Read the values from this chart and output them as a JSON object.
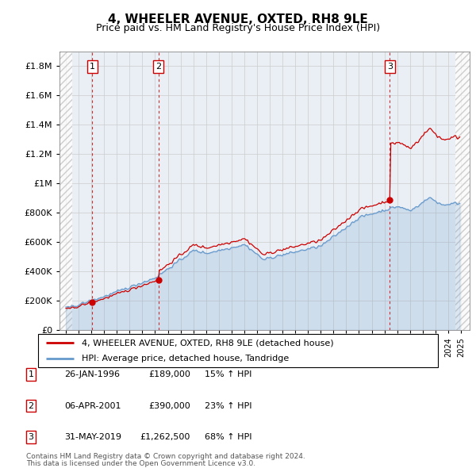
{
  "title": "4, WHEELER AVENUE, OXTED, RH8 9LE",
  "subtitle": "Price paid vs. HM Land Registry's House Price Index (HPI)",
  "ylabel_ticks": [
    "£0",
    "£200K",
    "£400K",
    "£600K",
    "£800K",
    "£1M",
    "£1.2M",
    "£1.4M",
    "£1.6M",
    "£1.8M"
  ],
  "ytick_values": [
    0,
    200000,
    400000,
    600000,
    800000,
    1000000,
    1200000,
    1400000,
    1600000,
    1800000
  ],
  "ylim": [
    0,
    1900000
  ],
  "xlim_start": 1993.5,
  "xlim_end": 2025.7,
  "sale_color": "#cc0000",
  "hpi_color": "#6699cc",
  "footnote1": "Contains HM Land Registry data © Crown copyright and database right 2024.",
  "footnote2": "This data is licensed under the Open Government Licence v3.0.",
  "legend_line1": "4, WHEELER AVENUE, OXTED, RH8 9LE (detached house)",
  "legend_line2": "HPI: Average price, detached house, Tandridge",
  "transactions": [
    {
      "id": 1,
      "date": 1996.07,
      "price": 189000,
      "label": "1",
      "pct": "15%",
      "dir": "↑",
      "date_str": "26-JAN-1996",
      "price_str": "£189,000"
    },
    {
      "id": 2,
      "date": 2001.27,
      "price": 390000,
      "label": "2",
      "pct": "23%",
      "dir": "↑",
      "date_str": "06-APR-2001",
      "price_str": "£390,000"
    },
    {
      "id": 3,
      "date": 2019.42,
      "price": 1262500,
      "label": "3",
      "pct": "68%",
      "dir": "↑",
      "date_str": "31-MAY-2019",
      "price_str": "£1,262,500"
    }
  ],
  "hpi_base_x_start": 1994.5,
  "hpi_base_value_at_1996": 163000,
  "hpi_base_value_at_2001": 318000,
  "hpi_base_value_at_2019": 751000
}
